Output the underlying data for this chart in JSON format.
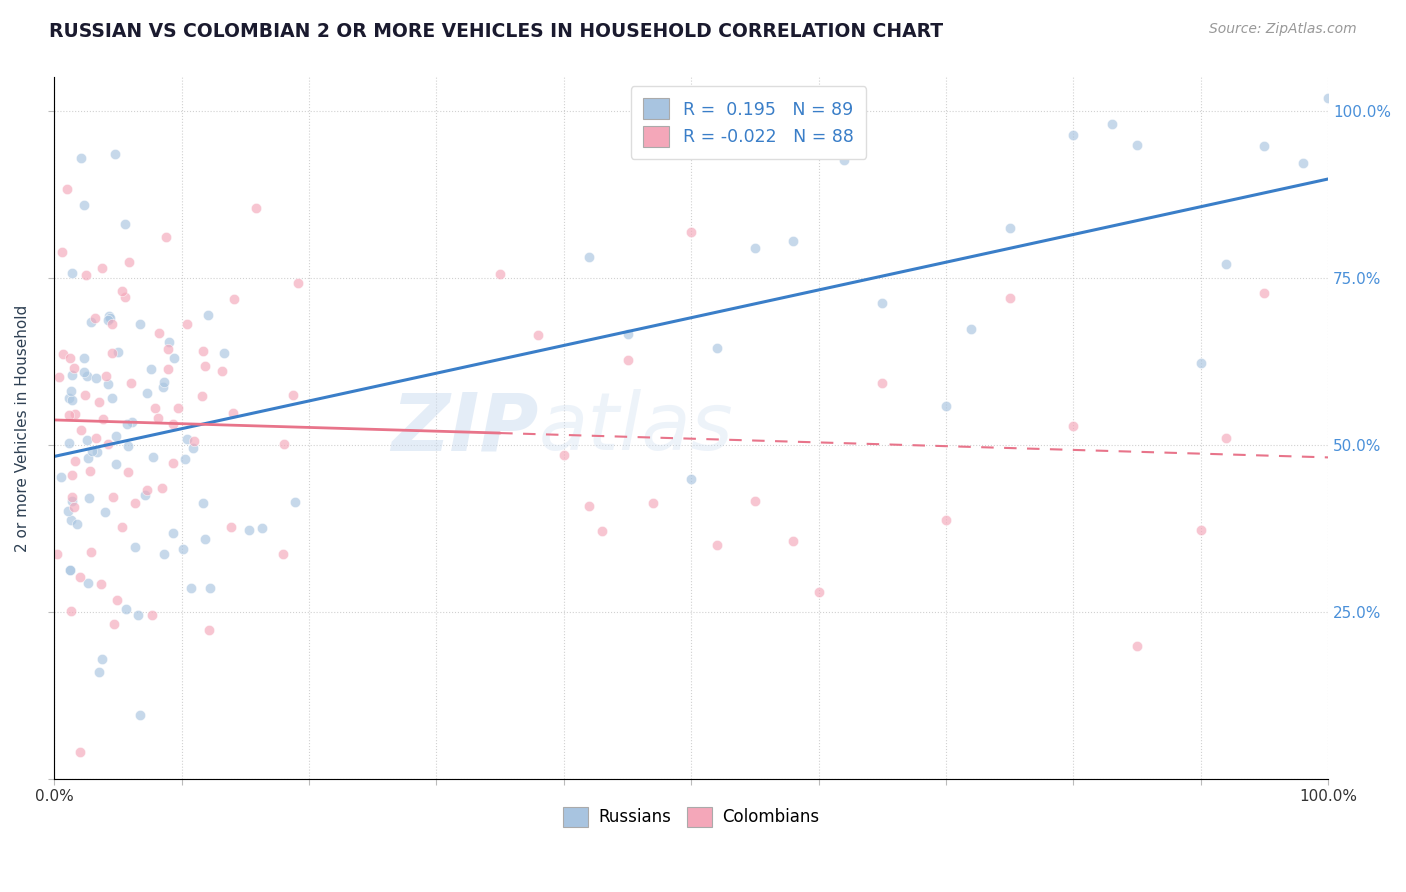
{
  "title": "RUSSIAN VS COLOMBIAN 2 OR MORE VEHICLES IN HOUSEHOLD CORRELATION CHART",
  "source": "Source: ZipAtlas.com",
  "ylabel": "2 or more Vehicles in Household",
  "russian_color": "#a8c4e0",
  "colombian_color": "#f4a7b9",
  "russian_line_color": "#3a7ec8",
  "colombian_line_color": "#e8748a",
  "russian_R": 0.195,
  "russian_N": 89,
  "colombian_R": -0.022,
  "colombian_N": 88,
  "watermark": "ZIPatlas",
  "background_color": "#ffffff",
  "title_color": "#1a1a2e",
  "axis_label_color": "#2e4053",
  "tick_label_color_right": "#4a90d9",
  "dot_size": 55,
  "dot_alpha": 0.65,
  "title_fontsize": 13.5
}
